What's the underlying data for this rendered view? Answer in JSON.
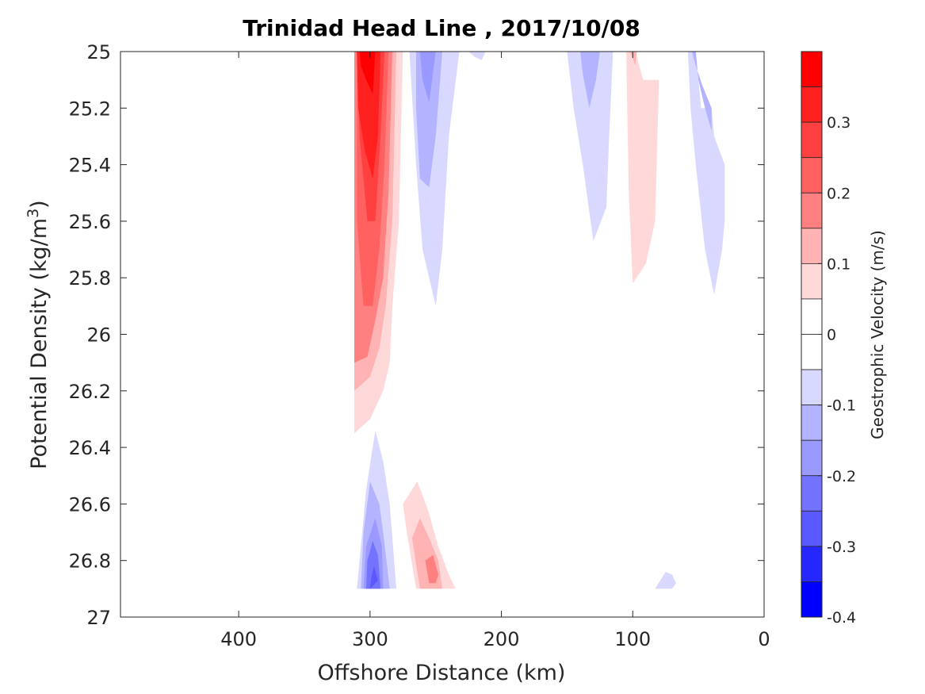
{
  "chart_data": {
    "type": "contour",
    "title": "Trinidad Head Line , 2017/10/08",
    "xlabel": "Offshore Distance (km)",
    "ylabel": "Potential Density (kg/m³)",
    "ylabel_base": "Potential Density (kg/m",
    "ylabel_sup": "3",
    "ylabel_end": ")",
    "colorbar_label": "Geostrophic Velocity (m/s)",
    "x_reversed": true,
    "xlim": [
      490,
      0
    ],
    "x_ticks": [
      400,
      300,
      200,
      100,
      0
    ],
    "x_tick_labels": [
      "400",
      "300",
      "200",
      "100",
      "0"
    ],
    "y_reversed": true,
    "ylim": [
      25,
      27
    ],
    "y_ticks": [
      25,
      25.2,
      25.4,
      25.6,
      25.8,
      26,
      26.2,
      26.4,
      26.6,
      26.8,
      27
    ],
    "y_tick_labels": [
      "25",
      "25.2",
      "25.4",
      "25.6",
      "25.8",
      "26",
      "26.2",
      "26.4",
      "26.6",
      "26.8",
      "27"
    ],
    "colorbar": {
      "range": [
        -0.4,
        0.4
      ],
      "levels": [
        0.4,
        0.35,
        0.3,
        0.25,
        0.2,
        0.15,
        0.1,
        0.05,
        0,
        -0.05,
        -0.1,
        -0.15,
        -0.2,
        -0.25,
        -0.3,
        -0.35,
        -0.4
      ],
      "bin_colors": [
        "#ff0000",
        "#ff2020",
        "#ff4040",
        "#ff6060",
        "#ff8080",
        "#ffb3b3",
        "#ffd9d9",
        "#ffffff",
        "#ffffff",
        "#d9d9ff",
        "#b3b3ff",
        "#9999ff",
        "#7373ff",
        "#5959ff",
        "#2626ff",
        "#0000ff"
      ],
      "tick_values": [
        0.3,
        0.2,
        0.1,
        0,
        -0.1,
        -0.2,
        -0.3,
        -0.4
      ],
      "tick_labels": [
        "0.3",
        "0.2",
        "0.1",
        "0",
        "-0.1",
        "-0.2",
        "-0.3",
        "-0.4"
      ]
    },
    "regions": [
      {
        "value": 0.05,
        "color": "#ffd9d9",
        "points": [
          [
            312,
            25
          ],
          [
            275,
            25
          ],
          [
            278,
            25.6
          ],
          [
            283,
            25.9
          ],
          [
            285,
            26.1
          ],
          [
            290,
            26.2
          ],
          [
            300,
            26.3
          ],
          [
            312,
            26.35
          ]
        ]
      },
      {
        "value": 0.1,
        "color": "#ffb3b3",
        "points": [
          [
            312,
            25
          ],
          [
            280,
            25
          ],
          [
            283,
            25.6
          ],
          [
            288,
            25.9
          ],
          [
            293,
            26.05
          ],
          [
            300,
            26.15
          ],
          [
            312,
            26.2
          ]
        ]
      },
      {
        "value": 0.15,
        "color": "#ff8080",
        "points": [
          [
            312,
            25
          ],
          [
            283,
            25
          ],
          [
            286,
            25.5
          ],
          [
            290,
            25.8
          ],
          [
            296,
            25.95
          ],
          [
            302,
            26.08
          ],
          [
            312,
            26.1
          ]
        ]
      },
      {
        "value": 0.2,
        "color": "#ff6060",
        "points": [
          [
            310,
            25
          ],
          [
            286,
            25
          ],
          [
            289,
            25.4
          ],
          [
            293,
            25.7
          ],
          [
            298,
            25.9
          ],
          [
            305,
            25.9
          ],
          [
            310,
            25.6
          ]
        ]
      },
      {
        "value": 0.25,
        "color": "#ff4040",
        "points": [
          [
            310,
            25
          ],
          [
            289,
            25
          ],
          [
            292,
            25.3
          ],
          [
            296,
            25.6
          ],
          [
            302,
            25.6
          ],
          [
            308,
            25.3
          ]
        ]
      },
      {
        "value": 0.3,
        "color": "#ff2020",
        "points": [
          [
            310,
            25
          ],
          [
            292,
            25
          ],
          [
            294,
            25.3
          ],
          [
            298,
            25.45
          ],
          [
            304,
            25.35
          ],
          [
            309,
            25.2
          ]
        ]
      },
      {
        "value": 0.35,
        "color": "#ff0000",
        "points": [
          [
            308,
            25
          ],
          [
            296,
            25
          ],
          [
            298,
            25.15
          ],
          [
            303,
            25.1
          ],
          [
            307,
            25.05
          ]
        ]
      },
      {
        "value": -0.05,
        "color": "#d9d9ff",
        "points": [
          [
            270,
            25
          ],
          [
            232,
            25
          ],
          [
            240,
            25.3
          ],
          [
            245,
            25.7
          ],
          [
            250,
            25.9
          ],
          [
            260,
            25.7
          ],
          [
            265,
            25.4
          ]
        ]
      },
      {
        "value": -0.1,
        "color": "#b3b3ff",
        "points": [
          [
            265,
            25
          ],
          [
            245,
            25
          ],
          [
            250,
            25.3
          ],
          [
            255,
            25.48
          ],
          [
            262,
            25.45
          ],
          [
            265,
            25.2
          ]
        ]
      },
      {
        "value": -0.15,
        "color": "#9999ff",
        "points": [
          [
            262,
            25
          ],
          [
            250,
            25
          ],
          [
            255,
            25.18
          ],
          [
            260,
            25.1
          ]
        ]
      },
      {
        "value": -0.05,
        "color": "#d9d9ff",
        "points": [
          [
            225,
            25
          ],
          [
            212,
            25
          ],
          [
            215,
            25.03
          ],
          [
            220,
            25.02
          ]
        ]
      },
      {
        "value": -0.05,
        "color": "#d9d9ff",
        "points": [
          [
            150,
            25
          ],
          [
            115,
            25
          ],
          [
            118,
            25.3
          ],
          [
            120,
            25.55
          ],
          [
            130,
            25.67
          ],
          [
            138,
            25.4
          ],
          [
            145,
            25.2
          ]
        ]
      },
      {
        "value": -0.1,
        "color": "#b3b3ff",
        "points": [
          [
            140,
            25
          ],
          [
            125,
            25
          ],
          [
            128,
            25.1
          ],
          [
            133,
            25.2
          ],
          [
            138,
            25.08
          ]
        ]
      },
      {
        "value": 0.05,
        "color": "#ffd9d9",
        "points": [
          [
            105,
            25
          ],
          [
            98,
            25
          ],
          [
            92,
            25.1
          ],
          [
            80,
            25.1
          ],
          [
            83,
            25.6
          ],
          [
            90,
            25.75
          ],
          [
            100,
            25.82
          ],
          [
            103,
            25.5
          ]
        ]
      },
      {
        "value": 0.1,
        "color": "#ffb3b3",
        "points": [
          [
            102,
            25
          ],
          [
            97,
            25
          ],
          [
            98,
            25.05
          ]
        ]
      },
      {
        "value": -0.05,
        "color": "#d9d9ff",
        "points": [
          [
            58,
            25
          ],
          [
            52,
            25
          ],
          [
            48,
            25.2
          ],
          [
            40,
            25.2
          ],
          [
            38,
            25.3
          ],
          [
            30,
            25.4
          ],
          [
            30,
            25.6
          ],
          [
            32,
            25.7
          ],
          [
            38,
            25.86
          ],
          [
            45,
            25.7
          ],
          [
            52,
            25.4
          ],
          [
            56,
            25.2
          ]
        ]
      },
      {
        "value": -0.1,
        "color": "#b3b3ff",
        "points": [
          [
            55,
            25
          ],
          [
            52,
            25
          ],
          [
            50,
            25.1
          ],
          [
            45,
            25.2
          ],
          [
            40,
            25.28
          ],
          [
            40,
            25.2
          ],
          [
            47,
            25.12
          ],
          [
            52,
            25.05
          ]
        ]
      },
      {
        "value": -0.05,
        "color": "#d9d9ff",
        "points": [
          [
            310,
            26.9
          ],
          [
            280,
            26.9
          ],
          [
            285,
            26.6
          ],
          [
            290,
            26.45
          ],
          [
            296,
            26.34
          ],
          [
            303,
            26.55
          ],
          [
            307,
            26.75
          ]
        ]
      },
      {
        "value": -0.1,
        "color": "#b3b3ff",
        "points": [
          [
            307,
            26.9
          ],
          [
            285,
            26.9
          ],
          [
            290,
            26.7
          ],
          [
            293,
            26.6
          ],
          [
            300,
            26.52
          ],
          [
            305,
            26.7
          ]
        ]
      },
      {
        "value": -0.15,
        "color": "#9999ff",
        "points": [
          [
            305,
            26.9
          ],
          [
            290,
            26.9
          ],
          [
            291,
            26.75
          ],
          [
            296,
            26.65
          ],
          [
            303,
            26.75
          ]
        ]
      },
      {
        "value": -0.2,
        "color": "#7373ff",
        "points": [
          [
            303,
            26.9
          ],
          [
            292,
            26.9
          ],
          [
            294,
            26.78
          ],
          [
            298,
            26.73
          ],
          [
            302,
            26.8
          ]
        ]
      },
      {
        "value": -0.25,
        "color": "#5959ff",
        "points": [
          [
            300,
            26.9
          ],
          [
            294,
            26.87
          ],
          [
            297,
            26.82
          ],
          [
            299,
            26.86
          ]
        ]
      },
      {
        "value": 0.05,
        "color": "#ffd9d9",
        "points": [
          [
            272,
            26.7
          ],
          [
            275,
            26.6
          ],
          [
            264,
            26.52
          ],
          [
            256,
            26.62
          ],
          [
            248,
            26.75
          ],
          [
            240,
            26.85
          ],
          [
            235,
            26.9
          ],
          [
            265,
            26.9
          ]
        ]
      },
      {
        "value": 0.1,
        "color": "#ffb3b3",
        "points": [
          [
            268,
            26.72
          ],
          [
            262,
            26.65
          ],
          [
            255,
            26.72
          ],
          [
            248,
            26.8
          ],
          [
            245,
            26.9
          ],
          [
            262,
            26.9
          ]
        ]
      },
      {
        "value": 0.15,
        "color": "#ff8080",
        "points": [
          [
            258,
            26.8
          ],
          [
            252,
            26.78
          ],
          [
            248,
            26.85
          ],
          [
            250,
            26.88
          ],
          [
            255,
            26.88
          ]
        ]
      },
      {
        "value": -0.05,
        "color": "#d9d9ff",
        "points": [
          [
            83,
            26.9
          ],
          [
            75,
            26.84
          ],
          [
            70,
            26.85
          ],
          [
            67,
            26.88
          ],
          [
            70,
            26.9
          ]
        ]
      }
    ]
  }
}
